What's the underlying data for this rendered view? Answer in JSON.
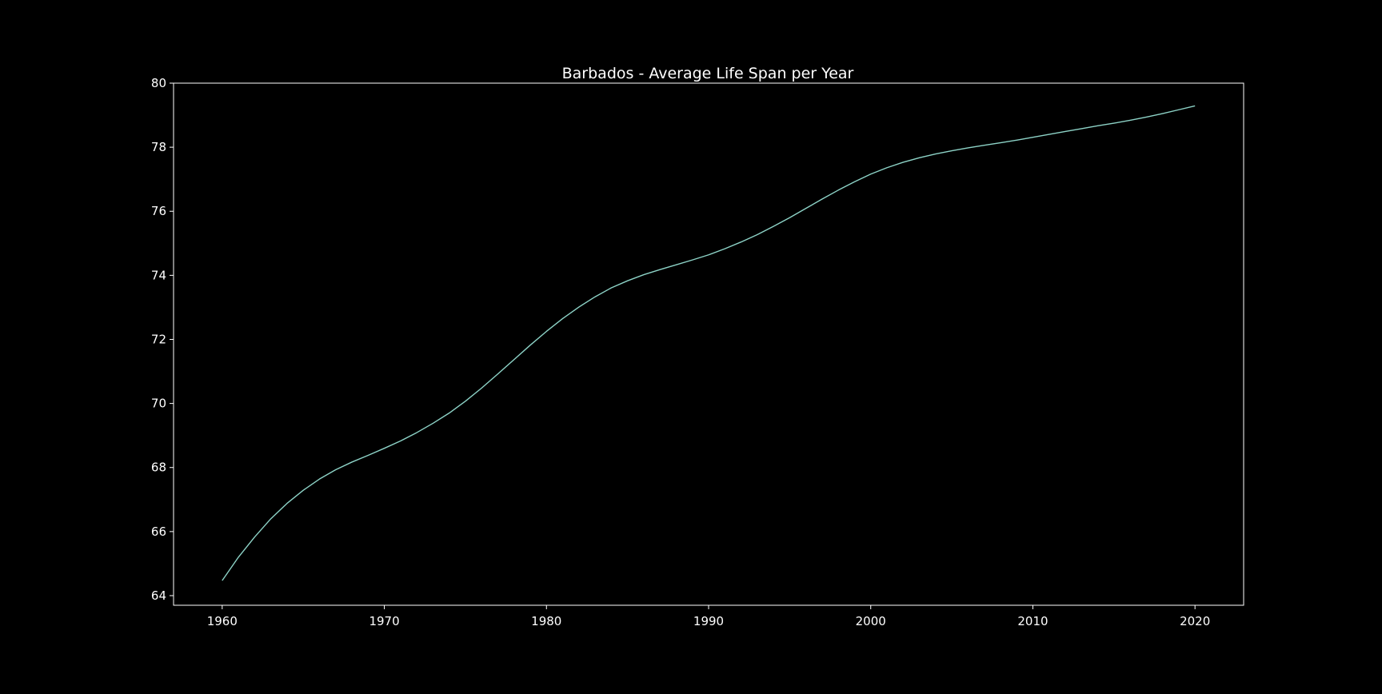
{
  "chart_data": {
    "type": "line",
    "title": "Barbados - Average Life Span per Year",
    "xlabel": "",
    "ylabel": "",
    "xlim": [
      1957,
      2023
    ],
    "ylim": [
      63.7,
      80
    ],
    "x_ticks": [
      1960,
      1970,
      1980,
      1990,
      2000,
      2010,
      2020
    ],
    "y_ticks": [
      64,
      66,
      68,
      70,
      72,
      74,
      76,
      78,
      80
    ],
    "grid": false,
    "legend": "none",
    "colors": {
      "background": "#000000",
      "line": "#8dd3c7",
      "axes": "#ffffff",
      "text": "#ffffff"
    },
    "series": [
      {
        "x": [
          1960,
          1961,
          1962,
          1963,
          1964,
          1965,
          1966,
          1967,
          1968,
          1969,
          1970,
          1971,
          1972,
          1973,
          1974,
          1975,
          1976,
          1977,
          1978,
          1979,
          1980,
          1981,
          1982,
          1983,
          1984,
          1985,
          1986,
          1987,
          1988,
          1989,
          1990,
          1991,
          1992,
          1993,
          1994,
          1995,
          1996,
          1997,
          1998,
          1999,
          2000,
          2001,
          2002,
          2003,
          2004,
          2005,
          2006,
          2007,
          2008,
          2009,
          2010,
          2011,
          2012,
          2013,
          2014,
          2015,
          2016,
          2017,
          2018,
          2019,
          2020
        ],
        "values": [
          64.47,
          65.2,
          65.83,
          66.4,
          66.88,
          67.29,
          67.64,
          67.93,
          68.17,
          68.38,
          68.6,
          68.83,
          69.09,
          69.38,
          69.7,
          70.07,
          70.48,
          70.92,
          71.37,
          71.82,
          72.25,
          72.65,
          73.01,
          73.33,
          73.61,
          73.83,
          74.02,
          74.18,
          74.33,
          74.48,
          74.64,
          74.83,
          75.04,
          75.27,
          75.53,
          75.8,
          76.09,
          76.38,
          76.66,
          76.92,
          77.16,
          77.36,
          77.53,
          77.67,
          77.79,
          77.89,
          77.98,
          78.06,
          78.14,
          78.22,
          78.31,
          78.4,
          78.49,
          78.58,
          78.67,
          78.75,
          78.84,
          78.94,
          79.05,
          79.17,
          79.29
        ]
      }
    ]
  }
}
